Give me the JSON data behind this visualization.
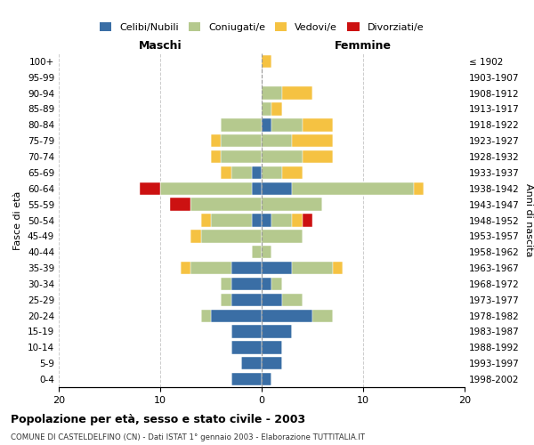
{
  "age_groups": [
    "100+",
    "95-99",
    "90-94",
    "85-89",
    "80-84",
    "75-79",
    "70-74",
    "65-69",
    "60-64",
    "55-59",
    "50-54",
    "45-49",
    "40-44",
    "35-39",
    "30-34",
    "25-29",
    "20-24",
    "15-19",
    "10-14",
    "5-9",
    "0-4"
  ],
  "birth_years": [
    "≤ 1902",
    "1903-1907",
    "1908-1912",
    "1913-1917",
    "1918-1922",
    "1923-1927",
    "1928-1932",
    "1933-1937",
    "1938-1942",
    "1943-1947",
    "1948-1952",
    "1953-1957",
    "1958-1962",
    "1963-1967",
    "1968-1972",
    "1973-1977",
    "1978-1982",
    "1983-1987",
    "1988-1992",
    "1993-1997",
    "1998-2002"
  ],
  "male": {
    "celibi": [
      0,
      0,
      0,
      0,
      0,
      0,
      0,
      1,
      1,
      0,
      1,
      0,
      0,
      3,
      3,
      3,
      5,
      3,
      3,
      2,
      3
    ],
    "coniugati": [
      0,
      0,
      0,
      0,
      4,
      4,
      4,
      2,
      9,
      7,
      4,
      6,
      1,
      4,
      1,
      1,
      1,
      0,
      0,
      0,
      0
    ],
    "vedovi": [
      0,
      0,
      0,
      0,
      0,
      1,
      1,
      1,
      0,
      0,
      1,
      1,
      0,
      1,
      0,
      0,
      0,
      0,
      0,
      0,
      0
    ],
    "divorziati": [
      0,
      0,
      0,
      0,
      0,
      0,
      0,
      0,
      2,
      2,
      0,
      0,
      0,
      0,
      0,
      0,
      0,
      0,
      0,
      0,
      0
    ]
  },
  "female": {
    "nubili": [
      0,
      0,
      0,
      0,
      1,
      0,
      0,
      0,
      3,
      0,
      1,
      0,
      0,
      3,
      1,
      2,
      5,
      3,
      2,
      2,
      1
    ],
    "coniugate": [
      0,
      0,
      2,
      1,
      3,
      3,
      4,
      2,
      12,
      6,
      2,
      4,
      1,
      4,
      1,
      2,
      2,
      0,
      0,
      0,
      0
    ],
    "vedove": [
      1,
      0,
      3,
      1,
      3,
      4,
      3,
      2,
      1,
      0,
      1,
      0,
      0,
      1,
      0,
      0,
      0,
      0,
      0,
      0,
      0
    ],
    "divorziate": [
      0,
      0,
      0,
      0,
      0,
      0,
      0,
      0,
      0,
      0,
      1,
      0,
      0,
      0,
      0,
      0,
      0,
      0,
      0,
      0,
      0
    ]
  },
  "colors": {
    "celibi": "#3a6ea5",
    "coniugati": "#b5c98e",
    "vedovi": "#f5c242",
    "divorziati": "#cc1111"
  },
  "legend_labels": [
    "Celibi/Nubili",
    "Coniugati/e",
    "Vedovi/e",
    "Divorziati/e"
  ],
  "title": "Popolazione per età, sesso e stato civile - 2003",
  "subtitle": "COMUNE DI CASTELDELFINO (CN) - Dati ISTAT 1° gennaio 2003 - Elaborazione TUTTITALIA.IT",
  "xlabel_left": "Maschi",
  "xlabel_right": "Femmine",
  "ylabel_left": "Fasce di età",
  "ylabel_right": "Anni di nascita",
  "xlim": 20,
  "background_color": "#ffffff",
  "grid_color": "#cccccc"
}
